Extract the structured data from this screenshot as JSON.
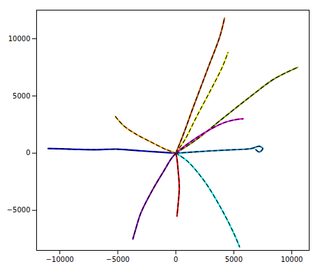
{
  "chart_data": {
    "type": "line",
    "xlim": [
      -12000,
      11500
    ],
    "ylim": [
      -8500,
      12500
    ],
    "xticks": [
      -10000,
      -5000,
      0,
      5000,
      10000
    ],
    "yticks": [
      -5000,
      0,
      5000,
      10000
    ],
    "grid": false,
    "line_style": "dashed",
    "series": [
      {
        "color": "#0000ee",
        "x": [
          -11000,
          -9000,
          -7000,
          -5000,
          -3000,
          -1500,
          0
        ],
        "y": [
          400,
          350,
          300,
          350,
          200,
          100,
          0
        ]
      },
      {
        "color": "#ffaa00",
        "x": [
          -5200,
          -4500,
          -3500,
          -2000,
          -800,
          0
        ],
        "y": [
          3200,
          2400,
          1700,
          900,
          300,
          0
        ]
      },
      {
        "color": "#ffff00",
        "x": [
          0,
          800,
          1800,
          3000,
          4000,
          4500
        ],
        "y": [
          0,
          1200,
          3200,
          5500,
          7500,
          8800
        ]
      },
      {
        "color": "#cc5500",
        "x": [
          0,
          600,
          1500,
          2800,
          3800,
          4200
        ],
        "y": [
          0,
          1500,
          4000,
          7500,
          10200,
          11800
        ]
      },
      {
        "color": "#88aa00",
        "x": [
          0,
          1800,
          4000,
          6500,
          8500,
          10500
        ],
        "y": [
          0,
          1200,
          3000,
          5000,
          6500,
          7500
        ]
      },
      {
        "color": "#ff00ff",
        "x": [
          0,
          1000,
          2500,
          4000,
          5000,
          5800
        ],
        "y": [
          0,
          800,
          1800,
          2600,
          2900,
          3000
        ]
      },
      {
        "color": "#00ffff",
        "x": [
          0,
          1000,
          2500,
          4000,
          5000,
          5500
        ],
        "y": [
          0,
          -700,
          -2500,
          -5000,
          -7000,
          -8200
        ]
      },
      {
        "color": "#1188cc",
        "x": [
          0,
          1500,
          3000,
          5000,
          6500,
          7200,
          7500,
          7200,
          6900
        ],
        "y": [
          0,
          100,
          200,
          300,
          400,
          600,
          400,
          100,
          300
        ]
      },
      {
        "color": "#ff0000",
        "x": [
          0,
          100,
          200,
          300,
          200,
          100
        ],
        "y": [
          0,
          -500,
          -1500,
          -3000,
          -4500,
          -5500
        ]
      },
      {
        "color": "#8800bb",
        "x": [
          0,
          -400,
          -1000,
          -2000,
          -3000,
          -3500,
          -3700
        ],
        "y": [
          0,
          -500,
          -1500,
          -3200,
          -5200,
          -6800,
          -7500
        ]
      }
    ]
  }
}
